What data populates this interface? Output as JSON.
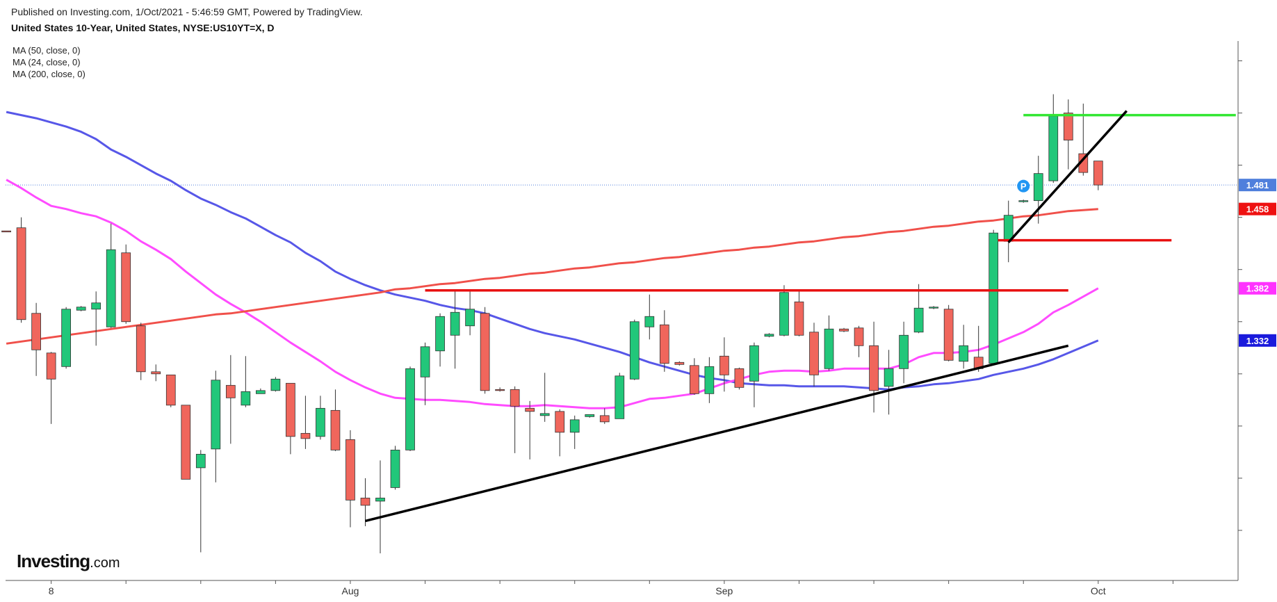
{
  "chart_data": {
    "type": "candlestick",
    "header": "Published on Investing.com, 1/Oct/2021 - 5:46:59 GMT, Powered by TradingView.",
    "title": "United States 10-Year, United States, NYSE:US10YT=X, D",
    "logo": [
      "Investing",
      ".com"
    ],
    "categories": [
      null,
      null,
      null,
      "8",
      null,
      null,
      null,
      null,
      null,
      null,
      null,
      null,
      null,
      null,
      null,
      null,
      null,
      null,
      null,
      null,
      null,
      null,
      null,
      "Aug",
      null,
      null,
      null,
      null,
      null,
      null,
      null,
      null,
      null,
      null,
      null,
      null,
      null,
      null,
      null,
      null,
      null,
      null,
      null,
      null,
      null,
      null,
      null,
      null,
      "Sep",
      null,
      null,
      null,
      null,
      null,
      null,
      null,
      null,
      null,
      null,
      null,
      null,
      null,
      null,
      null,
      null,
      null,
      null,
      null,
      null,
      null,
      null,
      null,
      null,
      "Oct"
    ],
    "open": [
      1.437,
      1.44,
      1.358,
      1.32,
      1.307,
      1.361,
      1.362,
      1.345,
      1.416,
      1.346,
      1.302,
      1.299,
      1.27,
      1.21,
      1.228,
      1.289,
      1.27,
      1.281,
      1.284,
      1.291,
      1.243,
      1.24,
      1.265,
      1.237,
      1.181,
      1.178,
      1.191,
      1.227,
      1.297,
      1.322,
      1.337,
      1.346,
      1.358,
      1.285,
      1.285,
      1.267,
      1.26,
      1.264,
      1.244,
      1.259,
      1.26,
      1.257,
      1.295,
      1.345,
      1.347,
      1.311,
      1.308,
      1.281,
      1.317,
      1.305,
      1.293,
      1.336,
      1.337,
      1.369,
      1.34,
      1.305,
      1.343,
      1.344,
      1.327,
      1.288,
      1.305,
      1.34,
      1.363,
      1.362,
      1.312,
      1.316,
      1.31,
      1.427,
      1.465,
      1.466,
      1.485,
      1.55,
      1.511,
      1.504
    ],
    "high": [
      1.437,
      1.45,
      1.368,
      1.321,
      1.364,
      1.365,
      1.379,
      1.444,
      1.424,
      1.349,
      1.309,
      1.299,
      1.27,
      1.227,
      1.303,
      1.318,
      1.317,
      1.286,
      1.297,
      1.291,
      1.279,
      1.279,
      1.285,
      1.246,
      1.2,
      1.217,
      1.231,
      1.307,
      1.33,
      1.358,
      1.379,
      1.379,
      1.364,
      1.287,
      1.288,
      1.274,
      1.301,
      1.266,
      1.26,
      1.261,
      1.267,
      1.301,
      1.352,
      1.376,
      1.361,
      1.312,
      1.315,
      1.316,
      1.335,
      1.306,
      1.33,
      1.339,
      1.385,
      1.379,
      1.349,
      1.356,
      1.344,
      1.346,
      1.35,
      1.323,
      1.35,
      1.386,
      1.365,
      1.366,
      1.347,
      1.346,
      1.438,
      1.466,
      1.467,
      1.509,
      1.568,
      1.563,
      1.559,
      1.504
    ],
    "low": [
      1.436,
      1.349,
      1.298,
      1.252,
      1.305,
      1.36,
      1.327,
      1.344,
      1.348,
      1.294,
      1.293,
      1.268,
      1.199,
      1.129,
      1.196,
      1.233,
      1.268,
      1.281,
      1.283,
      1.223,
      1.228,
      1.237,
      1.226,
      1.153,
      1.154,
      1.128,
      1.189,
      1.226,
      1.27,
      1.307,
      1.305,
      1.337,
      1.281,
      1.283,
      1.224,
      1.218,
      1.254,
      1.221,
      1.228,
      1.258,
      1.252,
      1.257,
      1.294,
      1.333,
      1.302,
      1.308,
      1.28,
      1.272,
      1.283,
      1.285,
      1.268,
      1.335,
      1.336,
      1.336,
      1.288,
      1.303,
      1.34,
      1.316,
      1.263,
      1.261,
      1.291,
      1.339,
      1.362,
      1.312,
      1.305,
      1.302,
      1.309,
      1.407,
      1.464,
      1.444,
      1.483,
      1.496,
      1.49,
      1.476
    ],
    "close": [
      1.436,
      1.352,
      1.323,
      1.295,
      1.362,
      1.364,
      1.368,
      1.419,
      1.35,
      1.302,
      1.3,
      1.27,
      1.199,
      1.223,
      1.294,
      1.277,
      1.283,
      1.284,
      1.295,
      1.24,
      1.238,
      1.267,
      1.227,
      1.179,
      1.174,
      1.181,
      1.227,
      1.305,
      1.326,
      1.355,
      1.359,
      1.362,
      1.284,
      1.284,
      1.269,
      1.264,
      1.262,
      1.244,
      1.256,
      1.261,
      1.254,
      1.298,
      1.35,
      1.355,
      1.31,
      1.309,
      1.281,
      1.307,
      1.299,
      1.287,
      1.327,
      1.338,
      1.378,
      1.337,
      1.299,
      1.343,
      1.341,
      1.327,
      1.284,
      1.305,
      1.337,
      1.363,
      1.364,
      1.313,
      1.327,
      1.305,
      1.435,
      1.452,
      1.466,
      1.492,
      1.547,
      1.524,
      1.493,
      1.481
    ],
    "up_color": "#22c77a",
    "down_color": "#f0665c",
    "moving_averages": [
      {
        "name": "MA (50, close, 0)",
        "color": "#5757e8",
        "values": [
          1.551,
          1.548,
          1.545,
          1.541,
          1.537,
          1.532,
          1.525,
          1.515,
          1.508,
          1.5,
          1.492,
          1.485,
          1.476,
          1.468,
          1.462,
          1.455,
          1.449,
          1.441,
          1.433,
          1.426,
          1.416,
          1.408,
          1.398,
          1.391,
          1.385,
          1.38,
          1.376,
          1.373,
          1.37,
          1.366,
          1.363,
          1.361,
          1.358,
          1.353,
          1.348,
          1.343,
          1.339,
          1.336,
          1.333,
          1.329,
          1.325,
          1.321,
          1.316,
          1.311,
          1.307,
          1.303,
          1.299,
          1.296,
          1.294,
          1.291,
          1.29,
          1.289,
          1.289,
          1.288,
          1.288,
          1.288,
          1.288,
          1.287,
          1.286,
          1.285,
          1.287,
          1.288,
          1.29,
          1.291,
          1.293,
          1.295,
          1.299,
          1.302,
          1.305,
          1.309,
          1.314,
          1.32,
          1.326,
          1.332
        ]
      },
      {
        "name": "MA (24, close, 0)",
        "color": "#ff4cff",
        "values": [
          1.486,
          1.478,
          1.469,
          1.461,
          1.458,
          1.454,
          1.451,
          1.445,
          1.437,
          1.427,
          1.419,
          1.41,
          1.398,
          1.387,
          1.376,
          1.367,
          1.359,
          1.35,
          1.34,
          1.33,
          1.321,
          1.312,
          1.302,
          1.294,
          1.287,
          1.281,
          1.277,
          1.276,
          1.275,
          1.275,
          1.274,
          1.273,
          1.271,
          1.27,
          1.269,
          1.269,
          1.27,
          1.269,
          1.268,
          1.267,
          1.267,
          1.268,
          1.272,
          1.276,
          1.277,
          1.279,
          1.281,
          1.286,
          1.291,
          1.295,
          1.299,
          1.302,
          1.303,
          1.303,
          1.302,
          1.303,
          1.305,
          1.305,
          1.305,
          1.305,
          1.309,
          1.316,
          1.32,
          1.32,
          1.321,
          1.323,
          1.328,
          1.334,
          1.34,
          1.348,
          1.359,
          1.366,
          1.374,
          1.382
        ]
      },
      {
        "name": "MA (200, close, 0)",
        "color": "#f0504a",
        "values": [
          1.329,
          1.331,
          1.333,
          1.335,
          1.337,
          1.339,
          1.341,
          1.343,
          1.345,
          1.347,
          1.349,
          1.351,
          1.353,
          1.355,
          1.357,
          1.358,
          1.36,
          1.362,
          1.364,
          1.366,
          1.368,
          1.37,
          1.372,
          1.374,
          1.376,
          1.378,
          1.381,
          1.382,
          1.384,
          1.386,
          1.387,
          1.389,
          1.391,
          1.392,
          1.394,
          1.396,
          1.397,
          1.399,
          1.401,
          1.402,
          1.404,
          1.406,
          1.407,
          1.409,
          1.411,
          1.412,
          1.414,
          1.416,
          1.418,
          1.419,
          1.421,
          1.422,
          1.424,
          1.426,
          1.427,
          1.429,
          1.431,
          1.432,
          1.434,
          1.436,
          1.437,
          1.439,
          1.441,
          1.442,
          1.444,
          1.446,
          1.447,
          1.449,
          1.451,
          1.452,
          1.454,
          1.456,
          1.457,
          1.458
        ]
      }
    ],
    "price_tags": [
      {
        "value": 1.481,
        "color": "#4f7fdc"
      },
      {
        "value": 1.458,
        "color": "#ee1111"
      },
      {
        "value": 1.382,
        "color": "#ff33ff"
      },
      {
        "value": 1.332,
        "color": "#1a1adc"
      }
    ],
    "price_line": true,
    "drawings": [
      {
        "x": [
          28,
          71
        ],
        "y": [
          1.38,
          1.38
        ],
        "color": "#e81010"
      },
      {
        "x": [
          66.3,
          77.9
        ],
        "y": [
          1.428,
          1.428
        ],
        "color": "#e81010"
      },
      {
        "x": [
          68,
          82.2
        ],
        "y": [
          1.548,
          1.548
        ],
        "color": "#33e633"
      },
      {
        "x": [
          24,
          71
        ],
        "y": [
          1.159,
          1.327
        ],
        "color": "#000000"
      },
      {
        "x": [
          67,
          74.9
        ],
        "y": [
          1.426,
          1.552
        ],
        "color": "#000000"
      }
    ],
    "annotation": {
      "text": "P",
      "x": 68,
      "y": 1.48,
      "color": "#2196f3"
    },
    "xlim": [
      -0.05,
      82.35
    ],
    "xticks": [
      3,
      8,
      13,
      18,
      23,
      28,
      33,
      38,
      43,
      48,
      53,
      58,
      63,
      68,
      73,
      78
    ],
    "ylim": [
      1.102,
      1.619
    ],
    "yticks": [
      1.15,
      1.2,
      1.25,
      1.3,
      1.35,
      1.4,
      1.45,
      1.5,
      1.55,
      1.6
    ]
  }
}
